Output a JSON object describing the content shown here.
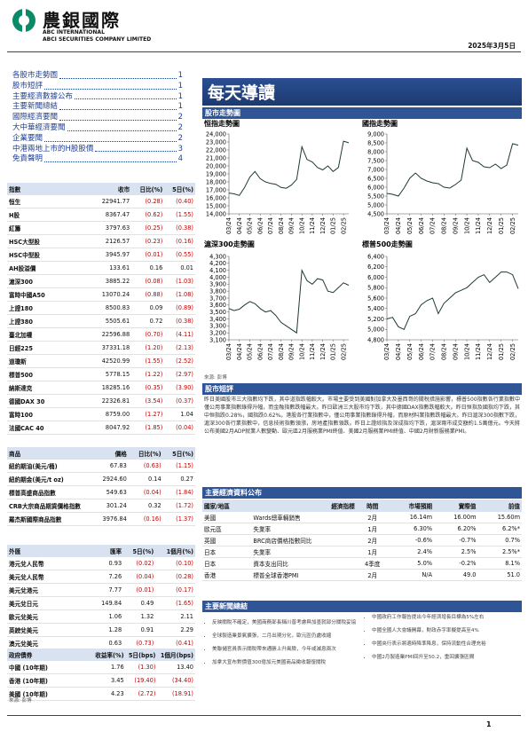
{
  "header": {
    "company_cn": "農銀國際",
    "company_en1": "ABC INTERNATIONAL",
    "company_en2": "ABCI SECURITIES COMPANY LIMITED",
    "date": "2025年3月5日"
  },
  "toc": [
    {
      "label": "各股市走勢圖",
      "page": "1"
    },
    {
      "label": "股市短評",
      "page": "1"
    },
    {
      "label": "主要經濟數據公布",
      "page": "1"
    },
    {
      "label": "主要新聞總結",
      "page": "1"
    },
    {
      "label": "國際經濟要聞",
      "page": "2"
    },
    {
      "label": "大中華經濟要聞",
      "page": "2"
    },
    {
      "label": "企業要聞",
      "page": "2"
    },
    {
      "label": "中港兩地上市的H股股價",
      "page": "3"
    },
    {
      "label": "免責聲明",
      "page": "4"
    }
  ],
  "market_tables": [
    {
      "columns": [
        "指數",
        "收市",
        "日比(%)",
        "5日(%)"
      ],
      "rows": [
        [
          "恒生",
          "22941.77",
          "(0.28)",
          "(0.40)"
        ],
        [
          "H股",
          "8367.47",
          "(0.62)",
          "(1.55)"
        ],
        [
          "紅籌",
          "3797.63",
          "(0.25)",
          "(0.38)"
        ],
        [
          "HSC大型股",
          "2126.57",
          "(0.23)",
          "(0.16)"
        ],
        [
          "HSC中型股",
          "3945.97",
          "(0.01)",
          "(0.55)"
        ],
        [
          "AH股溢價",
          "133.61",
          "0.16",
          "0.01"
        ],
        [
          "滬深300",
          "3885.22",
          "(0.08)",
          "(1.03)"
        ],
        [
          "富時中國A50",
          "13070.24",
          "(0.88)",
          "(1.08)"
        ],
        [
          "上證180",
          "8500.83",
          "0.09",
          "(0.89)"
        ],
        [
          "上證380",
          "5505.61",
          "0.72",
          "(0.38)"
        ],
        [
          "臺北加權",
          "22596.88",
          "(0.70)",
          "(4.11)"
        ],
        [
          "日經225",
          "37331.18",
          "(1.20)",
          "(2.13)"
        ],
        [
          "道瓊斯",
          "42520.99",
          "(1.55)",
          "(2.52)"
        ],
        [
          "標普500",
          "5778.15",
          "(1.22)",
          "(2.97)"
        ],
        [
          "納斯達克",
          "18285.16",
          "(0.35)",
          "(3.90)"
        ],
        [
          "德國DAX 30",
          "22326.81",
          "(3.54)",
          "(0.37)"
        ],
        [
          "富時100",
          "8759.00",
          "(1.27)",
          "1.04"
        ],
        [
          "法國CAC 40",
          "8047.92",
          "(1.85)",
          "(0.04)"
        ]
      ]
    },
    {
      "columns": [
        "商品",
        "價格",
        "日比(%)",
        "5日(%)"
      ],
      "rows": [
        [
          "紐約期油(美元/桶)",
          "67.83",
          "(0.63)",
          "(1.15)"
        ],
        [
          "紐約期金(美元/t oz)",
          "2924.60",
          "0.14",
          "0.27"
        ],
        [
          "標普高盛商品指數",
          "549.63",
          "(0.04)",
          "(1.84)"
        ],
        [
          "CRB大宗商品期貨價格指數",
          "301.24",
          "0.32",
          "(1.72)"
        ],
        [
          "羅杰斯國際商品指數",
          "3976.84",
          "(0.16)",
          "(1.37)"
        ]
      ]
    },
    {
      "columns": [
        "外匯",
        "匯率",
        "5日(%)",
        "1個月(%)"
      ],
      "rows": [
        [
          "港元兌人民幣",
          "0.93",
          "(0.02)",
          "(0.10)"
        ],
        [
          "美元兌人民幣",
          "7.26",
          "(0.04)",
          "(0.28)"
        ],
        [
          "美元兌港元",
          "7.77",
          "(0.01)",
          "(0.17)"
        ],
        [
          "美元兌日元",
          "149.84",
          "0.49",
          "(1.65)"
        ],
        [
          "歐元兌美元",
          "1.06",
          "1.32",
          "2.11"
        ],
        [
          "英鎊兌美元",
          "1.28",
          "0.91",
          "2.29"
        ],
        [
          "澳元兌美元",
          "0.63",
          "(0.73)",
          "(0.41)"
        ]
      ]
    },
    {
      "columns": [
        "政府債券",
        "收益率(%)",
        "5日(bps)",
        "1個月(bps)"
      ],
      "rows": [
        [
          "中國 (10年期)",
          "1.76",
          "(1.30)",
          "13.40"
        ],
        [
          "香港 (10年期)",
          "3.45",
          "(19.40)",
          "(34.40)"
        ],
        [
          "美國 (10年期)",
          "4.23",
          "(2.72)",
          "(18.91)"
        ]
      ]
    }
  ],
  "left_source": "來源: 彭博",
  "title": "每天導讀",
  "charts_heading": "股市走勢圖",
  "chart_data": [
    {
      "type": "line",
      "title": "恒指走勢圖",
      "color": "#1f3b2c",
      "categories": [
        "03/24",
        null,
        "04/24",
        null,
        "05/24",
        null,
        "06/24",
        null,
        "07/24",
        null,
        "08/24",
        null,
        "09/24",
        null,
        "10/24",
        null,
        "11/24",
        null,
        "12/24",
        null,
        "01/25",
        null,
        "02/25",
        null
      ],
      "values": [
        16600,
        16500,
        16300,
        17300,
        18600,
        19300,
        18400,
        18000,
        17800,
        17700,
        17300,
        17200,
        17600,
        18300,
        22400,
        20800,
        20500,
        19800,
        19500,
        20000,
        19300,
        19800,
        23100,
        22900
      ],
      "ylim": [
        14000,
        24000
      ],
      "yticks": [
        {
          "value": 14000,
          "label": "14,000"
        },
        {
          "value": 15000,
          "label": "15,000"
        },
        {
          "value": 16000,
          "label": "16,000"
        },
        {
          "value": 17000,
          "label": "17,000"
        },
        {
          "value": 18000,
          "label": "18,000"
        },
        {
          "value": 19000,
          "label": "19,000"
        },
        {
          "value": 20000,
          "label": "20,000"
        },
        {
          "value": 21000,
          "label": "21,000"
        },
        {
          "value": 22000,
          "label": "22,000"
        },
        {
          "value": 23000,
          "label": "23,000"
        },
        {
          "value": 24000,
          "label": "24,000"
        }
      ]
    },
    {
      "type": "line",
      "title": "國指走勢圖",
      "color": "#1f3b2c",
      "categories": [
        "03/24",
        null,
        "04/24",
        null,
        "05/24",
        null,
        "06/24",
        null,
        "07/24",
        null,
        "08/24",
        null,
        "09/24",
        null,
        "10/24",
        null,
        "11/24",
        null,
        "12/24",
        null,
        "01/25",
        null,
        "02/25",
        null
      ],
      "values": [
        5650,
        5600,
        5500,
        5950,
        6500,
        6800,
        6500,
        6350,
        6250,
        6200,
        6000,
        5950,
        6150,
        6400,
        8200,
        7500,
        7400,
        7150,
        7100,
        7300,
        7050,
        7250,
        8450,
        8370
      ],
      "ylim": [
        4500,
        9000
      ],
      "yticks": [
        {
          "value": 4500,
          "label": "4,500"
        },
        {
          "value": 5000,
          "label": "5,000"
        },
        {
          "value": 5500,
          "label": "5,500"
        },
        {
          "value": 6000,
          "label": "6,000"
        },
        {
          "value": 6500,
          "label": "6,500"
        },
        {
          "value": 7000,
          "label": "7,000"
        },
        {
          "value": 7500,
          "label": "7,500"
        },
        {
          "value": 8000,
          "label": "8,000"
        },
        {
          "value": 8500,
          "label": "8,500"
        },
        {
          "value": 9000,
          "label": "9,000"
        }
      ]
    },
    {
      "type": "line",
      "title": "滬深300走勢圖",
      "color": "#1f3b2c",
      "categories": [
        "03/24",
        null,
        "04/24",
        null,
        "05/24",
        null,
        "06/24",
        null,
        "07/24",
        null,
        "08/24",
        null,
        "09/24",
        null,
        "10/24",
        null,
        "11/24",
        null,
        "12/24",
        null,
        "01/25",
        null,
        "02/25",
        null
      ],
      "values": [
        3550,
        3520,
        3540,
        3600,
        3650,
        3620,
        3550,
        3500,
        3520,
        3450,
        3350,
        3300,
        3250,
        3200,
        4100,
        3950,
        3900,
        3980,
        3960,
        3800,
        3780,
        3850,
        3920,
        3885
      ],
      "ylim": [
        3100,
        4300
      ],
      "yticks": [
        {
          "value": 3100,
          "label": "3,100"
        },
        {
          "value": 3200,
          "label": "3,200"
        },
        {
          "value": 3300,
          "label": "3,300"
        },
        {
          "value": 3400,
          "label": "3,400"
        },
        {
          "value": 3500,
          "label": "3,500"
        },
        {
          "value": 3600,
          "label": "3,600"
        },
        {
          "value": 3700,
          "label": "3,700"
        },
        {
          "value": 3800,
          "label": "3,800"
        },
        {
          "value": 3900,
          "label": "3,900"
        },
        {
          "value": 4000,
          "label": "4,000"
        },
        {
          "value": 4100,
          "label": "4,100"
        },
        {
          "value": 4200,
          "label": "4,200"
        },
        {
          "value": 4300,
          "label": "4,300"
        }
      ]
    },
    {
      "type": "line",
      "title": "標普500走勢圖",
      "color": "#1f3b2c",
      "categories": [
        "03/24",
        null,
        "04/24",
        null,
        "05/24",
        null,
        "06/24",
        null,
        "07/24",
        null,
        "08/24",
        null,
        "09/24",
        null,
        "10/24",
        null,
        "11/24",
        null,
        "12/24",
        null,
        "01/25",
        null,
        "02/25",
        null
      ],
      "values": [
        5200,
        5230,
        5050,
        5000,
        5250,
        5300,
        5470,
        5550,
        5600,
        5300,
        5500,
        5600,
        5700,
        5750,
        5800,
        5900,
        6000,
        6050,
        5900,
        6000,
        6100,
        6100,
        6050,
        5780
      ],
      "ylim": [
        4800,
        6400
      ],
      "yticks": [
        {
          "value": 4800,
          "label": "4,800"
        },
        {
          "value": 5000,
          "label": "5,000"
        },
        {
          "value": 5200,
          "label": "5,200"
        },
        {
          "value": 5400,
          "label": "5,400"
        },
        {
          "value": 5600,
          "label": "5,600"
        },
        {
          "value": 5800,
          "label": "5,800"
        },
        {
          "value": 6000,
          "label": "6,000"
        },
        {
          "value": 6200,
          "label": "6,200"
        },
        {
          "value": 6400,
          "label": "6,400"
        }
      ]
    }
  ],
  "chart_source": "來源: 彭博",
  "commentary": {
    "heading": "股市短評",
    "text": "昨日美國股市三大指數均下跌，其中道指跌幅較大。市場主要受到美國對加拿大及墨西哥的關稅措施影響，標普500指數各行業指數中僅公用事業指數錄得升幅，而金融指數跌幅最大。昨日歐洲三大股市均下跌，其中德國DAX指數跌幅較大。昨日恒指及國指均下跌，其中恒指跌0.28%，國指跌0.62%。港股各行業指數中，僅公用事業指數錄得升幅，而原材料業指數跌幅最大。昨日滬深300指數下跌，滬深300各行業指數中，信息技術指數領漲，房地產指數領跌。昨日上證綜指及深成指均下跌，滬深兩市成交額約1.5萬億元。今天將公布美國2月ADP就業人數變動、歐元區2月服務業PMI終值、美國2月服務業PMI終值、中國2月財新服務業PMI。"
  },
  "economic": {
    "heading": "主要經濟資料公布",
    "columns": [
      "國家/地區",
      "經濟指標",
      "時間",
      "市場預期",
      "實際值",
      "前值"
    ],
    "rows": [
      [
        "美國",
        "Wards總車輛銷售",
        "2月",
        "16.14m",
        "16.00m",
        "15.60m"
      ],
      [
        "歐元區",
        "失業率",
        "1月",
        "6.30%",
        "6.20%",
        "6.2%*"
      ],
      [
        "英國",
        "BRC商店價格指數同比",
        "2月",
        "-0.6%",
        "-0.7%",
        "0.7%"
      ],
      [
        "日本",
        "失業率",
        "1月",
        "2.4%",
        "2.5%",
        "2.5%*"
      ],
      [
        "日本",
        "資本支出同比",
        "4季度",
        "5.0%",
        "-0.2%",
        "8.1%"
      ],
      [
        "香港",
        "標普全球香港PMI",
        "2月",
        "N/A",
        "49.0",
        "51.0"
      ]
    ]
  },
  "news": {
    "heading": "主要新聞總結",
    "left": [
      "反映關稅不確定，美國商務部長稱川普考慮與加墨就部分關稅妥協",
      "全球製造業景氣擴張，二月出現分化，歐元區仍處收縮",
      "美聯儲官員表示關稅帶來通脹上升風險，今年或減息兩次",
      "加拿大宣布對價值300億加元美國商品徵收報復關稅"
    ],
    "right": [
      "中國政府工作報告提出今年經濟增長目標為5%左右",
      "中國全國人大會議開幕，財政赤字率擬提高至4%",
      "中國央行表示將適時降準降息，保持流動性合理充裕",
      "中國2月製造業PMI回升至50.2，重回擴張區間"
    ]
  },
  "page_number": "1"
}
